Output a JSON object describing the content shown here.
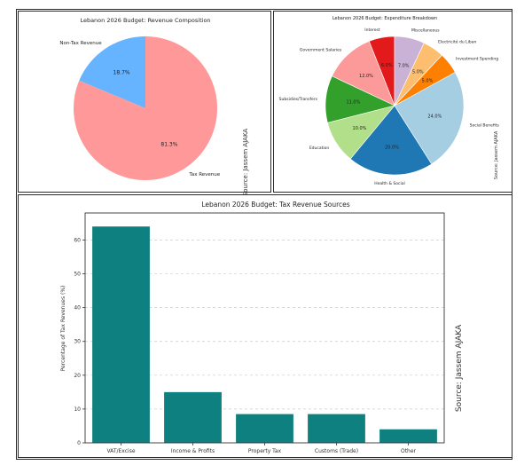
{
  "chart_data": [
    {
      "type": "pie",
      "title": "Lebanon 2026 Budget: Revenue Composition",
      "labels": [
        "Non-Tax Revenue",
        "Tax Revenue"
      ],
      "values": [
        18.7,
        81.3
      ],
      "value_labels": [
        "18.7%",
        "81.3%"
      ],
      "colors": [
        "#66b3ff",
        "#ff9999"
      ],
      "source": "Source: Jassem AJAKA"
    },
    {
      "type": "pie",
      "title": "Lebanon 2026 Budget: Expenditure Breakdown",
      "labels": [
        "Interest",
        "Government Salaries",
        "Subsidies/Transfers",
        "Education",
        "Health & Social",
        "Social Benefits",
        "Investment Spending",
        "Electricité du Liban",
        "Miscellaneous"
      ],
      "values": [
        6.0,
        12.0,
        11.0,
        10.0,
        20.0,
        24.0,
        5.0,
        5.0,
        7.0
      ],
      "value_labels": [
        "6.0%",
        "12.0%",
        "11.0%",
        "10.0%",
        "20.0%",
        "24.0%",
        "5.0%",
        "5.0%",
        "7.0%"
      ],
      "colors": [
        "#e31a1c",
        "#fb9a99",
        "#33a02c",
        "#b2df8a",
        "#1f78b4",
        "#a6cee3",
        "#ff7f00",
        "#fdbf6f",
        "#cab2d6"
      ],
      "source": "Source: Jassem AJAKA"
    },
    {
      "type": "bar",
      "title": "Lebanon 2026 Budget: Tax Revenue Sources",
      "categories": [
        "VAT/Excise",
        "Income & Profits",
        "Property Tax",
        "Customs (Trade)",
        "Other"
      ],
      "values": [
        64,
        15,
        8.5,
        8.5,
        4
      ],
      "ylabel": "Percentage of Tax Revenues (%)",
      "xlabel": "",
      "ylim": [
        0,
        68
      ],
      "yticks": [
        "0",
        "10",
        "20",
        "30",
        "40",
        "50",
        "60"
      ],
      "bar_color": "#0f8080",
      "grid": "horizontal dashed",
      "source": "Source: Jassem AJAKA"
    }
  ]
}
